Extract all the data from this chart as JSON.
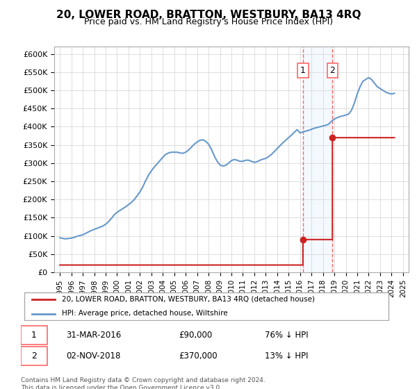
{
  "title": "20, LOWER ROAD, BRATTON, WESTBURY, BA13 4RQ",
  "subtitle": "Price paid vs. HM Land Registry's House Price Index (HPI)",
  "hpi_color": "#6699cc",
  "price_color": "#cc2222",
  "marker_color": "#cc2222",
  "hpi_marker_color": "#6699cc",
  "background_color": "#ffffff",
  "grid_color": "#dddddd",
  "ylim": [
    0,
    620000
  ],
  "yticks": [
    0,
    50000,
    100000,
    150000,
    200000,
    250000,
    300000,
    350000,
    400000,
    450000,
    500000,
    550000,
    600000
  ],
  "ytick_labels": [
    "£0",
    "£50K",
    "£100K",
    "£150K",
    "£200K",
    "£250K",
    "£300K",
    "£350K",
    "£400K",
    "£450K",
    "£500K",
    "£550K",
    "£600K"
  ],
  "legend_label_price": "20, LOWER ROAD, BRATTON, WESTBURY, BA13 4RQ (detached house)",
  "legend_label_hpi": "HPI: Average price, detached house, Wiltshire",
  "sale1_label": "1",
  "sale1_date": "31-MAR-2016",
  "sale1_price": "£90,000",
  "sale1_pct": "76% ↓ HPI",
  "sale2_label": "2",
  "sale2_date": "02-NOV-2018",
  "sale2_price": "£370,000",
  "sale2_pct": "13% ↓ HPI",
  "footnote": "Contains HM Land Registry data © Crown copyright and database right 2024.\nThis data is licensed under the Open Government Licence v3.0.",
  "hpi_years": [
    1995.0,
    1995.25,
    1995.5,
    1995.75,
    1996.0,
    1996.25,
    1996.5,
    1996.75,
    1997.0,
    1997.25,
    1997.5,
    1997.75,
    1998.0,
    1998.25,
    1998.5,
    1998.75,
    1999.0,
    1999.25,
    1999.5,
    1999.75,
    2000.0,
    2000.25,
    2000.5,
    2000.75,
    2001.0,
    2001.25,
    2001.5,
    2001.75,
    2002.0,
    2002.25,
    2002.5,
    2002.75,
    2003.0,
    2003.25,
    2003.5,
    2003.75,
    2004.0,
    2004.25,
    2004.5,
    2004.75,
    2005.0,
    2005.25,
    2005.5,
    2005.75,
    2006.0,
    2006.25,
    2006.5,
    2006.75,
    2007.0,
    2007.25,
    2007.5,
    2007.75,
    2008.0,
    2008.25,
    2008.5,
    2008.75,
    2009.0,
    2009.25,
    2009.5,
    2009.75,
    2010.0,
    2010.25,
    2010.5,
    2010.75,
    2011.0,
    2011.25,
    2011.5,
    2011.75,
    2012.0,
    2012.25,
    2012.5,
    2012.75,
    2013.0,
    2013.25,
    2013.5,
    2013.75,
    2014.0,
    2014.25,
    2014.5,
    2014.75,
    2015.0,
    2015.25,
    2015.5,
    2015.75,
    2016.0,
    2016.25,
    2016.5,
    2016.75,
    2017.0,
    2017.25,
    2017.5,
    2017.75,
    2018.0,
    2018.25,
    2018.5,
    2018.75,
    2019.0,
    2019.25,
    2019.5,
    2019.75,
    2020.0,
    2020.25,
    2020.5,
    2020.75,
    2021.0,
    2021.25,
    2021.5,
    2021.75,
    2022.0,
    2022.25,
    2022.5,
    2022.75,
    2023.0,
    2023.25,
    2023.5,
    2023.75,
    2024.0,
    2024.25
  ],
  "hpi_values": [
    95000,
    93000,
    92000,
    93000,
    94000,
    96000,
    99000,
    101000,
    103000,
    107000,
    111000,
    115000,
    118000,
    121000,
    124000,
    127000,
    132000,
    139000,
    148000,
    158000,
    165000,
    170000,
    175000,
    180000,
    186000,
    192000,
    200000,
    210000,
    221000,
    235000,
    252000,
    267000,
    279000,
    289000,
    298000,
    307000,
    316000,
    324000,
    328000,
    330000,
    330000,
    330000,
    328000,
    327000,
    330000,
    336000,
    344000,
    352000,
    358000,
    363000,
    364000,
    360000,
    352000,
    338000,
    320000,
    305000,
    295000,
    292000,
    294000,
    300000,
    307000,
    310000,
    308000,
    305000,
    305000,
    308000,
    308000,
    305000,
    302000,
    304000,
    308000,
    311000,
    313000,
    318000,
    324000,
    332000,
    340000,
    348000,
    356000,
    363000,
    370000,
    377000,
    385000,
    392000,
    383000,
    386000,
    388000,
    390000,
    393000,
    396000,
    398000,
    400000,
    402000,
    404000,
    407000,
    415000,
    421000,
    425000,
    428000,
    430000,
    432000,
    435000,
    445000,
    465000,
    490000,
    510000,
    525000,
    530000,
    535000,
    530000,
    520000,
    510000,
    505000,
    500000,
    495000,
    492000,
    490000,
    492000
  ],
  "price_sale_years": [
    2016.25,
    2018.83
  ],
  "price_sale_values": [
    90000,
    370000
  ],
  "sale1_year": 2016.25,
  "sale2_year": 2018.83,
  "vline_color": "#ff6666",
  "vline_style": "--",
  "shade_color": "#ddeeff",
  "shade_alpha": 0.3
}
